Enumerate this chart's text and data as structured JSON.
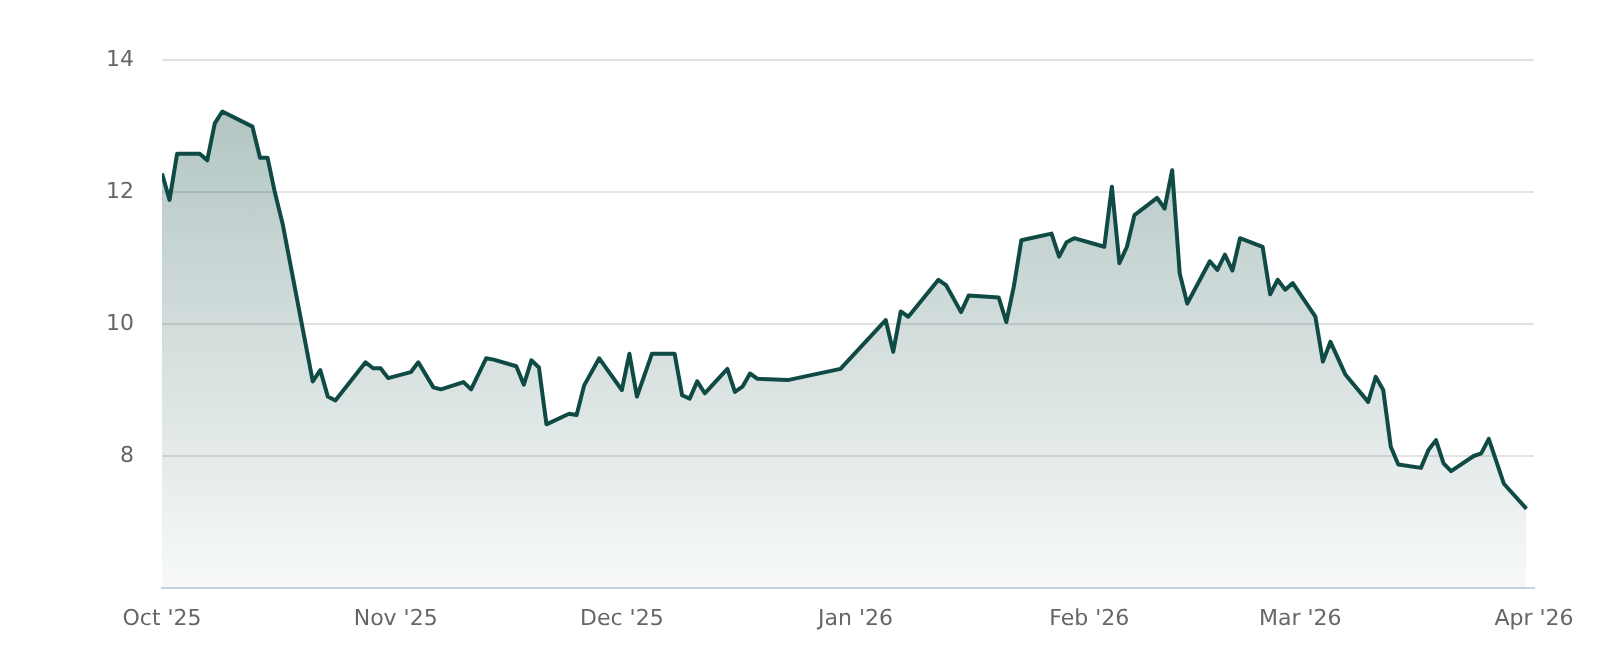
{
  "chart_data": {
    "type": "area",
    "x": [
      "2025-10-01",
      "2025-10-02",
      "2025-10-03",
      "2025-10-06",
      "2025-10-07",
      "2025-10-08",
      "2025-10-09",
      "2025-10-13",
      "2025-10-14",
      "2025-10-15",
      "2025-10-16",
      "2025-10-17",
      "2025-10-21",
      "2025-10-22",
      "2025-10-23",
      "2025-10-24",
      "2025-10-28",
      "2025-10-29",
      "2025-10-30",
      "2025-10-31",
      "2025-11-03",
      "2025-11-04",
      "2025-11-06",
      "2025-11-07",
      "2025-11-10",
      "2025-11-11",
      "2025-11-13",
      "2025-11-14",
      "2025-11-17",
      "2025-11-18",
      "2025-11-19",
      "2025-11-20",
      "2025-11-21",
      "2025-11-24",
      "2025-11-25",
      "2025-11-26",
      "2025-11-28",
      "2025-12-01",
      "2025-12-02",
      "2025-12-03",
      "2025-12-05",
      "2025-12-08",
      "2025-12-09",
      "2025-12-10",
      "2025-12-11",
      "2025-12-12",
      "2025-12-15",
      "2025-12-16",
      "2025-12-17",
      "2025-12-18",
      "2025-12-19",
      "2025-12-23",
      "2025-12-30",
      "2026-01-05",
      "2026-01-06",
      "2026-01-07",
      "2026-01-08",
      "2026-01-12",
      "2026-01-13",
      "2026-01-15",
      "2026-01-16",
      "2026-01-20",
      "2026-01-21",
      "2026-01-22",
      "2026-01-23",
      "2026-01-27",
      "2026-01-28",
      "2026-01-29",
      "2026-01-30",
      "2026-02-03",
      "2026-02-04",
      "2026-02-05",
      "2026-02-06",
      "2026-02-07",
      "2026-02-10",
      "2026-02-11",
      "2026-02-12",
      "2026-02-13",
      "2026-02-14",
      "2026-02-17",
      "2026-02-18",
      "2026-02-19",
      "2026-02-20",
      "2026-02-21",
      "2026-02-24",
      "2026-02-25",
      "2026-02-26",
      "2026-02-27",
      "2026-02-28",
      "2026-03-03",
      "2026-03-04",
      "2026-03-05",
      "2026-03-07",
      "2026-03-10",
      "2026-03-11",
      "2026-03-12",
      "2026-03-13",
      "2026-03-14",
      "2026-03-17",
      "2026-03-18",
      "2026-03-19",
      "2026-03-20",
      "2026-03-21",
      "2026-03-24",
      "2026-03-25",
      "2026-03-26",
      "2026-03-28",
      "2026-03-31"
    ],
    "series": [
      {
        "color": "#0f4a44",
        "values": [
          12.28,
          11.88,
          12.58,
          12.58,
          12.48,
          13.04,
          13.22,
          12.99,
          12.52,
          12.52,
          11.98,
          11.52,
          9.13,
          9.3,
          8.9,
          8.84,
          9.42,
          9.33,
          9.33,
          9.18,
          9.27,
          9.42,
          9.04,
          9.01,
          9.12,
          9.01,
          9.48,
          9.46,
          9.36,
          9.08,
          9.45,
          9.34,
          8.48,
          8.64,
          8.62,
          9.07,
          9.48,
          9.0,
          9.55,
          8.9,
          9.55,
          9.55,
          8.92,
          8.87,
          9.13,
          8.95,
          9.32,
          8.97,
          9.05,
          9.25,
          9.17,
          9.15,
          9.32,
          10.06,
          9.58,
          10.19,
          10.11,
          10.67,
          10.59,
          10.18,
          10.43,
          10.4,
          10.03,
          10.57,
          11.27,
          11.37,
          11.02,
          11.24,
          11.3,
          11.17,
          12.08,
          10.92,
          11.17,
          11.65,
          11.91,
          11.75,
          12.33,
          10.77,
          10.31,
          10.95,
          10.82,
          11.05,
          10.81,
          11.3,
          11.17,
          10.45,
          10.67,
          10.52,
          10.62,
          10.11,
          9.43,
          9.73,
          9.23,
          8.82,
          9.2,
          9.0,
          8.14,
          7.87,
          7.82,
          8.09,
          8.24,
          7.89,
          7.77,
          8.0,
          8.04,
          8.26,
          7.58,
          7.2
        ]
      }
    ],
    "xlim": [
      "2025-10-01",
      "2026-04-01"
    ],
    "xticks": [
      {
        "value": "2025-10-01",
        "label": "Oct '25"
      },
      {
        "value": "2025-11-01",
        "label": "Nov '25"
      },
      {
        "value": "2025-12-01",
        "label": "Dec '25"
      },
      {
        "value": "2026-01-01",
        "label": "Jan '26"
      },
      {
        "value": "2026-02-01",
        "label": "Feb '26"
      },
      {
        "value": "2026-03-01",
        "label": "Mar '26"
      },
      {
        "value": "2026-04-01",
        "label": "Apr '26"
      }
    ],
    "ylim": [
      6,
      14
    ],
    "yticks": [
      8,
      10,
      12,
      14
    ],
    "grid": "y",
    "legend": false,
    "marker": "none",
    "line_style": "solid"
  }
}
